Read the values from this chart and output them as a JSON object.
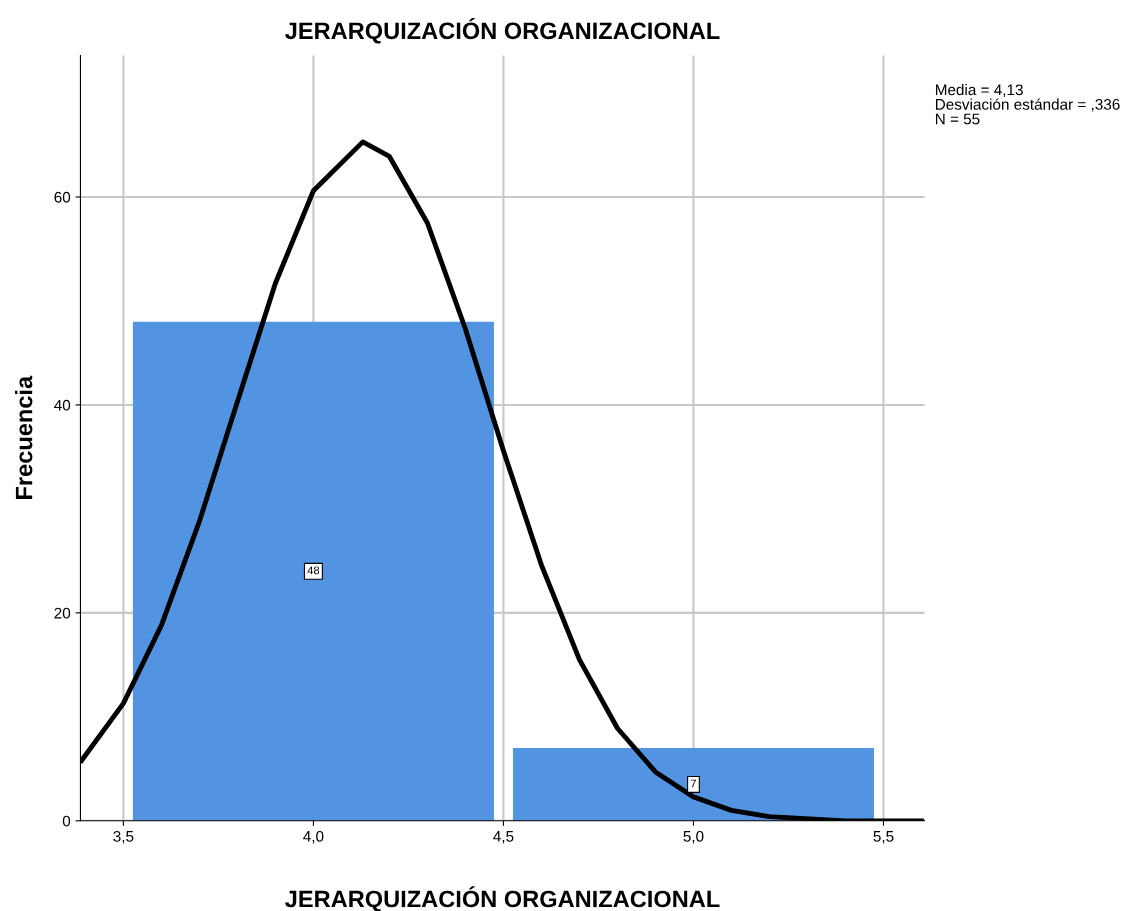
{
  "chart_data": {
    "type": "histogram",
    "title": "JERARQUIZACIÓN ORGANIZACIONAL",
    "xlabel": "JERARQUIZACIÓN ORGANIZACIONAL",
    "ylabel": "Frecuencia",
    "bins": [
      3.5,
      4.5,
      5.5
    ],
    "values": [
      48,
      7
    ],
    "color": "#5294e2",
    "value_labels": [
      "48",
      "7"
    ],
    "series": [
      {
        "type": "line",
        "color": "#000000",
        "x": [
          3.39,
          3.5,
          3.6,
          3.7,
          3.8,
          3.9,
          4.0,
          4.13,
          4.2,
          4.3,
          4.4,
          4.5,
          4.6,
          4.7,
          4.8,
          4.9,
          5.0,
          5.1,
          5.2,
          5.4,
          5.6
        ],
        "values": [
          5.8,
          11.3,
          18.8,
          28.8,
          40.3,
          51.7,
          60.6,
          65.3,
          63.9,
          57.5,
          47.3,
          35.6,
          24.6,
          15.5,
          8.9,
          4.7,
          2.3,
          1.0,
          0.4,
          0.0,
          0.0
        ]
      }
    ],
    "xlim": [
      3.387,
      5.608
    ],
    "ylim": [
      0,
      73.6
    ],
    "xticks": [
      {
        "value": 3.5,
        "label": "3,5"
      },
      {
        "value": 4.0,
        "label": "4,0"
      },
      {
        "value": 4.5,
        "label": "4,5"
      },
      {
        "value": 5.0,
        "label": "5,0"
      },
      {
        "value": 5.5,
        "label": "5,5"
      }
    ],
    "yticks": [
      0,
      20,
      40,
      60
    ],
    "grid": true,
    "annotations": [
      "Media = 4,13",
      "Desviación estándar = ,336",
      "N = 55"
    ]
  }
}
